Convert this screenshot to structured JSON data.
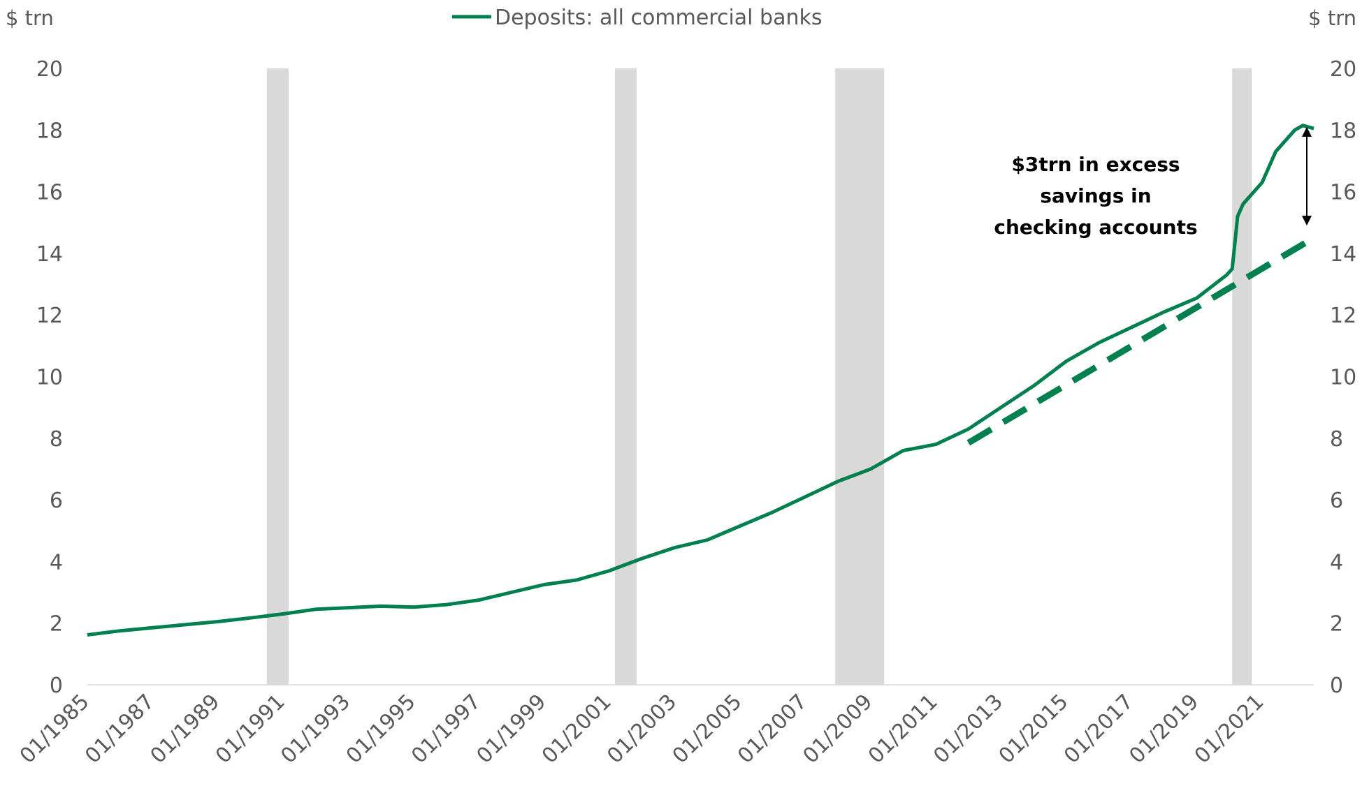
{
  "chart_data": {
    "type": "line",
    "title": "",
    "y_unit_left": "$ trn",
    "y_unit_right": "$ trn",
    "ylim": [
      0,
      20
    ],
    "yticks": [
      0,
      2,
      4,
      6,
      8,
      10,
      12,
      14,
      16,
      18,
      20
    ],
    "xlim": [
      "1985-01",
      "2022-08"
    ],
    "xtick_labels": [
      "01/1985",
      "01/1987",
      "01/1989",
      "01/1991",
      "01/1993",
      "01/1995",
      "01/1997",
      "01/1999",
      "01/2001",
      "01/2003",
      "01/2005",
      "01/2007",
      "01/2009",
      "01/2011",
      "01/2013",
      "01/2015",
      "01/2017",
      "01/2019",
      "01/2021"
    ],
    "legend": {
      "position": "top-center",
      "entries": [
        "Deposits: all commercial banks"
      ]
    },
    "grid": false,
    "colors": {
      "series": "#00804f",
      "recession": "#d9d9d9",
      "arrow": "#000000"
    },
    "recession_shading": [
      {
        "start": "1990-07",
        "end": "1991-03"
      },
      {
        "start": "2001-03",
        "end": "2001-11"
      },
      {
        "start": "2007-12",
        "end": "2009-06"
      },
      {
        "start": "2020-02",
        "end": "2020-04"
      }
    ],
    "series": [
      {
        "name": "Deposits: all commercial banks",
        "style": "solid",
        "points": [
          [
            "1985-01",
            1.62
          ],
          [
            "1986-01",
            1.75
          ],
          [
            "1987-01",
            1.85
          ],
          [
            "1988-01",
            1.95
          ],
          [
            "1989-01",
            2.05
          ],
          [
            "1990-01",
            2.17
          ],
          [
            "1991-01",
            2.3
          ],
          [
            "1992-01",
            2.45
          ],
          [
            "1993-01",
            2.5
          ],
          [
            "1994-01",
            2.55
          ],
          [
            "1995-01",
            2.52
          ],
          [
            "1996-01",
            2.6
          ],
          [
            "1997-01",
            2.75
          ],
          [
            "1998-01",
            3.0
          ],
          [
            "1999-01",
            3.25
          ],
          [
            "2000-01",
            3.4
          ],
          [
            "2001-01",
            3.7
          ],
          [
            "2002-01",
            4.1
          ],
          [
            "2003-01",
            4.45
          ],
          [
            "2004-01",
            4.7
          ],
          [
            "2005-01",
            5.15
          ],
          [
            "2006-01",
            5.6
          ],
          [
            "2007-01",
            6.1
          ],
          [
            "2008-01",
            6.6
          ],
          [
            "2009-01",
            7.0
          ],
          [
            "2010-01",
            7.6
          ],
          [
            "2011-01",
            7.8
          ],
          [
            "2012-01",
            8.3
          ],
          [
            "2013-01",
            9.0
          ],
          [
            "2014-01",
            9.7
          ],
          [
            "2015-01",
            10.5
          ],
          [
            "2016-01",
            11.1
          ],
          [
            "2017-01",
            11.6
          ],
          [
            "2018-01",
            12.1
          ],
          [
            "2019-01",
            12.55
          ],
          [
            "2019-12",
            13.3
          ],
          [
            "2020-02",
            13.5
          ],
          [
            "2020-04",
            15.2
          ],
          [
            "2020-06",
            15.6
          ],
          [
            "2021-01",
            16.3
          ],
          [
            "2021-06",
            17.3
          ],
          [
            "2022-01",
            18.0
          ],
          [
            "2022-04",
            18.15
          ],
          [
            "2022-08",
            18.05
          ]
        ]
      },
      {
        "name": "",
        "style": "dashed",
        "points": [
          [
            "2012-01",
            7.85
          ],
          [
            "2022-08",
            14.5
          ]
        ]
      }
    ],
    "annotations": [
      {
        "text": "$3trn in excess savings in checking accounts",
        "lines": [
          "$3trn in excess",
          "savings in",
          "checking accounts"
        ],
        "arrow_x": "2022-08",
        "arrow_from": 14.9,
        "arrow_to": 18.1
      }
    ]
  }
}
